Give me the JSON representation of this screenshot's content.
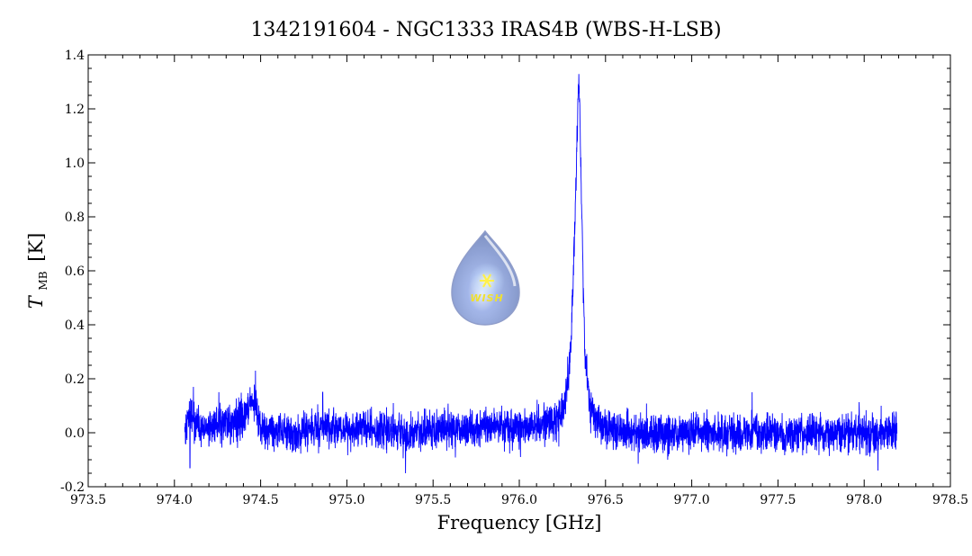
{
  "chart_data": {
    "type": "line",
    "title": "1342191604 - NGC1333 IRAS4B (WBS-H-LSB)",
    "xlabel": "Frequency [GHz]",
    "ylabel_main": "T",
    "ylabel_sub": "MB",
    "ylabel_unit": "[K]",
    "xlim": [
      973.5,
      978.5
    ],
    "ylim": [
      -0.2,
      1.4
    ],
    "x_ticks": [
      "973.5",
      "974.0",
      "974.5",
      "975.0",
      "975.5",
      "976.0",
      "976.5",
      "977.0",
      "977.5",
      "978.0",
      "978.5"
    ],
    "y_ticks": [
      "-0.2",
      "0.0",
      "0.2",
      "0.4",
      "0.6",
      "0.8",
      "1.0",
      "1.2",
      "1.4"
    ],
    "series_color": "#0000ff",
    "series": [
      {
        "x": [
          974.06,
          974.1,
          974.15,
          974.2,
          974.25,
          974.3,
          974.35,
          974.4,
          974.44,
          974.46,
          974.48,
          974.5,
          974.55,
          974.6,
          974.7,
          974.8,
          974.86,
          974.9,
          975.0,
          975.2,
          975.4,
          975.6,
          975.8,
          976.0,
          976.1,
          976.2,
          976.24,
          976.26,
          976.28,
          976.3,
          976.32,
          976.33,
          976.34,
          976.345,
          976.35,
          976.36,
          976.37,
          976.38,
          976.4,
          976.42,
          976.45,
          976.5,
          976.6,
          976.8,
          977.0,
          977.2,
          977.4,
          977.6,
          977.8,
          978.0,
          978.19
        ],
        "y": [
          0.0,
          0.06,
          0.01,
          0.02,
          0.03,
          0.04,
          0.03,
          0.05,
          0.12,
          0.12,
          0.06,
          0.02,
          0.0,
          0.01,
          0.0,
          0.01,
          0.03,
          0.02,
          0.01,
          0.01,
          0.0,
          0.01,
          0.02,
          0.02,
          0.03,
          0.04,
          0.06,
          0.1,
          0.18,
          0.35,
          0.7,
          0.98,
          1.22,
          1.3,
          1.22,
          0.9,
          0.55,
          0.32,
          0.16,
          0.08,
          0.04,
          0.02,
          0.0,
          0.0,
          0.0,
          0.0,
          0.0,
          0.0,
          0.0,
          0.0,
          0.0
        ]
      }
    ],
    "noise_rms": 0.035,
    "spikes": [
      {
        "x": 974.47,
        "y": 0.23
      },
      {
        "x": 974.11,
        "y": 0.17
      },
      {
        "x": 974.86,
        "y": 0.15
      },
      {
        "x": 975.34,
        "y": -0.15
      },
      {
        "x": 977.35,
        "y": 0.15
      },
      {
        "x": 978.08,
        "y": -0.14
      },
      {
        "x": 974.09,
        "y": -0.13
      }
    ],
    "grid": false,
    "legend": "none"
  },
  "logo": {
    "text": "WISH",
    "star_color": "#fff04a",
    "drop_color": "#9fb0dc"
  }
}
